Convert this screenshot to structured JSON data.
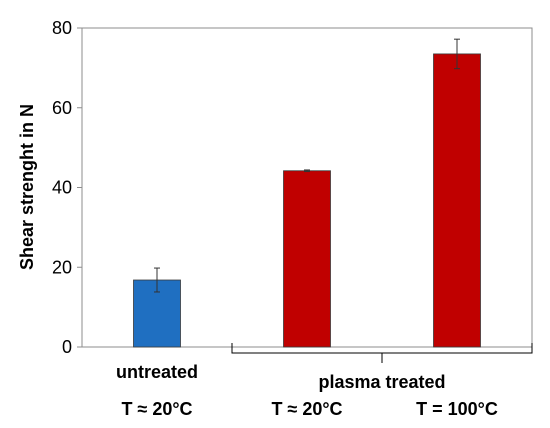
{
  "chart_data": {
    "type": "bar",
    "title": "",
    "ylabel": "Shear strenght in N",
    "ylim": [
      0,
      80
    ],
    "yticks": [
      0,
      20,
      40,
      60,
      80
    ],
    "grid": false,
    "categories": [
      "untreated",
      "T ≈ 20°C",
      "T = 100°C"
    ],
    "conditions": [
      "T ≈ 20°C",
      "T ≈ 20°C",
      "T = 100°C"
    ],
    "group_label": "plasma treated",
    "values": [
      16.8,
      44.2,
      73.5
    ],
    "errors": [
      3.0,
      0.2,
      3.7
    ],
    "colors": [
      "#1f6fc1",
      "#c00000",
      "#c00000"
    ]
  }
}
